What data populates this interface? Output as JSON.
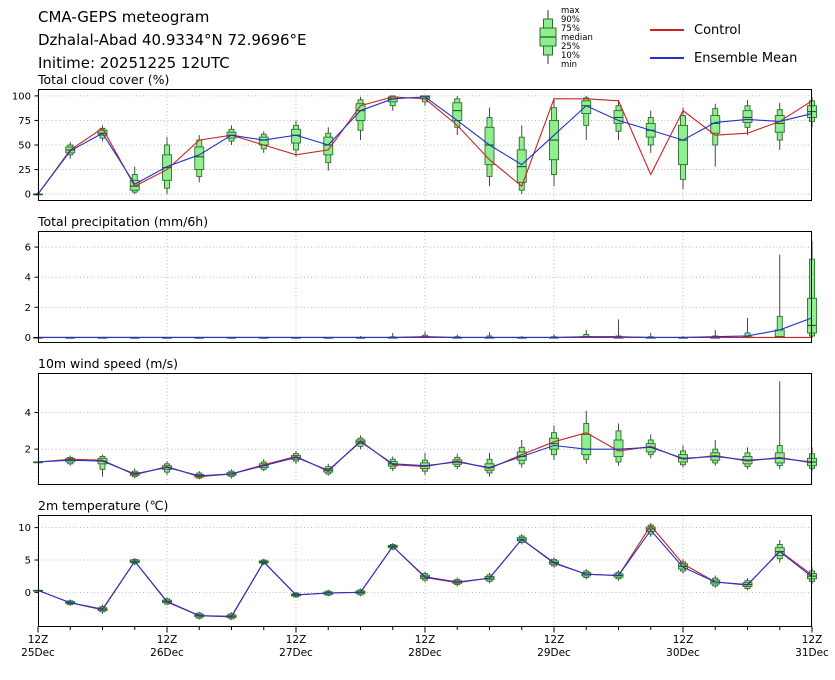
{
  "header": {
    "title": "CMA-GEPS meteogram",
    "station": "Dzhalal-Abad 40.9334°N 72.9696°E",
    "inittime": "Initime: 20251225 12UTC"
  },
  "legend": {
    "box_labels": [
      "max",
      "90%",
      "75%",
      "median",
      "25%",
      "10%",
      "min"
    ],
    "series": [
      {
        "label": "Control",
        "color": "#cc2222"
      },
      {
        "label": "Ensemble Mean",
        "color": "#2233cc"
      }
    ]
  },
  "colors": {
    "box_fill": "#90ee90",
    "box_edge": "#2d6e2d",
    "median": "#1a5c1a",
    "whisker": "#333333",
    "control": "#cc2222",
    "mean": "#2233cc",
    "grid": "#aaaaaa"
  },
  "x_axis": {
    "step_hours": 6,
    "major_tick_indices": [
      0,
      4,
      8,
      12,
      16,
      20,
      24
    ],
    "major_labels": [
      [
        "12Z",
        "25Dec"
      ],
      [
        "12Z",
        "26Dec"
      ],
      [
        "12Z",
        "27Dec"
      ],
      [
        "12Z",
        "28Dec"
      ],
      [
        "12Z",
        "29Dec"
      ],
      [
        "12Z",
        "30Dec"
      ],
      [
        "12Z",
        "31Dec"
      ]
    ]
  },
  "chart_data": [
    {
      "id": "cloud",
      "type": "box+line",
      "title": "Total cloud cover (%)",
      "ylim": [
        -6,
        106
      ],
      "yticks": [
        0,
        25,
        50,
        75,
        100
      ],
      "boxes": [
        [
          0,
          0,
          0,
          0,
          0,
          0,
          2
        ],
        [
          36,
          40,
          42,
          45,
          48,
          50,
          53
        ],
        [
          54,
          57,
          60,
          62,
          65,
          67,
          70
        ],
        [
          0,
          2,
          4,
          8,
          14,
          20,
          28
        ],
        [
          0,
          6,
          14,
          27,
          40,
          50,
          58
        ],
        [
          12,
          18,
          25,
          38,
          48,
          55,
          60
        ],
        [
          50,
          54,
          57,
          60,
          63,
          66,
          70
        ],
        [
          42,
          46,
          50,
          55,
          58,
          61,
          64
        ],
        [
          38,
          45,
          52,
          60,
          66,
          70,
          75
        ],
        [
          24,
          32,
          40,
          50,
          58,
          62,
          68
        ],
        [
          55,
          65,
          75,
          85,
          92,
          96,
          99
        ],
        [
          85,
          90,
          94,
          97,
          99,
          100,
          100
        ],
        [
          90,
          94,
          97,
          99,
          100,
          100,
          100
        ],
        [
          60,
          68,
          75,
          85,
          93,
          97,
          100
        ],
        [
          8,
          18,
          30,
          50,
          68,
          78,
          88
        ],
        [
          0,
          4,
          12,
          28,
          45,
          58,
          70
        ],
        [
          8,
          20,
          35,
          55,
          75,
          88,
          97
        ],
        [
          55,
          70,
          82,
          90,
          95,
          98,
          100
        ],
        [
          55,
          64,
          72,
          78,
          85,
          90,
          96
        ],
        [
          42,
          50,
          58,
          65,
          72,
          78,
          85
        ],
        [
          5,
          15,
          30,
          55,
          70,
          80,
          88
        ],
        [
          28,
          50,
          62,
          72,
          80,
          87,
          92
        ],
        [
          60,
          68,
          73,
          78,
          85,
          90,
          96
        ],
        [
          45,
          55,
          63,
          72,
          80,
          86,
          93
        ],
        [
          68,
          74,
          78,
          84,
          90,
          95,
          99
        ]
      ],
      "control": [
        0,
        45,
        67,
        8,
        25,
        55,
        60,
        50,
        40,
        45,
        90,
        99,
        97,
        70,
        35,
        8,
        97,
        97,
        95,
        20,
        85,
        60,
        62,
        74,
        95
      ],
      "mean": [
        0,
        44,
        62,
        10,
        28,
        40,
        60,
        55,
        60,
        50,
        85,
        97,
        99,
        75,
        50,
        30,
        60,
        90,
        75,
        65,
        55,
        73,
        76,
        74,
        82
      ]
    },
    {
      "id": "precip",
      "type": "box+line",
      "title": "Total precipitation (mm/6h)",
      "ylim": [
        -0.3,
        7.0
      ],
      "yticks": [
        0,
        2,
        4,
        6
      ],
      "boxes": [
        [
          0,
          0,
          0,
          0,
          0,
          0,
          0
        ],
        [
          0,
          0,
          0,
          0,
          0,
          0,
          0
        ],
        [
          0,
          0,
          0,
          0,
          0,
          0,
          0
        ],
        [
          0,
          0,
          0,
          0,
          0,
          0,
          0
        ],
        [
          0,
          0,
          0,
          0,
          0,
          0,
          0
        ],
        [
          0,
          0,
          0,
          0,
          0,
          0,
          0
        ],
        [
          0,
          0,
          0,
          0,
          0,
          0,
          0
        ],
        [
          0,
          0,
          0,
          0,
          0,
          0,
          0
        ],
        [
          0,
          0,
          0,
          0,
          0,
          0,
          0
        ],
        [
          0,
          0,
          0,
          0,
          0,
          0,
          0
        ],
        [
          0,
          0,
          0,
          0,
          0,
          0,
          0.1
        ],
        [
          0,
          0,
          0,
          0,
          0,
          0.05,
          0.3
        ],
        [
          0,
          0,
          0,
          0,
          0.05,
          0.15,
          0.4
        ],
        [
          0,
          0,
          0,
          0,
          0,
          0.05,
          0.2
        ],
        [
          0,
          0,
          0,
          0,
          0,
          0.1,
          0.35
        ],
        [
          0,
          0,
          0,
          0,
          0,
          0,
          0.1
        ],
        [
          0,
          0,
          0,
          0,
          0,
          0.05,
          0.2
        ],
        [
          0,
          0,
          0,
          0,
          0.05,
          0.2,
          0.5
        ],
        [
          0,
          0,
          0,
          0,
          0,
          0.1,
          1.2
        ],
        [
          0,
          0,
          0,
          0,
          0,
          0.05,
          0.3
        ],
        [
          0,
          0,
          0,
          0,
          0,
          0,
          0.1
        ],
        [
          0,
          0,
          0,
          0,
          0,
          0.1,
          0.5
        ],
        [
          0,
          0,
          0,
          0,
          0.05,
          0.3,
          1.3
        ],
        [
          0,
          0,
          0,
          0.05,
          0.5,
          1.4,
          5.5
        ],
        [
          0,
          0.1,
          0.3,
          0.8,
          2.6,
          5.2,
          6.4
        ]
      ],
      "control": [
        0,
        0,
        0,
        0,
        0,
        0,
        0,
        0,
        0,
        0,
        0,
        0,
        0,
        0,
        0,
        0,
        0,
        0,
        0,
        0,
        0,
        0,
        0,
        0,
        0
      ],
      "mean": [
        0,
        0,
        0,
        0,
        0,
        0,
        0,
        0,
        0,
        0,
        0,
        0,
        0.05,
        0,
        0,
        0,
        0,
        0.05,
        0.05,
        0,
        0,
        0.05,
        0.1,
        0.5,
        1.3
      ]
    },
    {
      "id": "wind",
      "type": "box+line",
      "title": "10m wind speed (m/s)",
      "ylim": [
        0.1,
        6.1
      ],
      "yticks": [
        2,
        4
      ],
      "boxes": [
        [
          1.3,
          1.3,
          1.3,
          1.3,
          1.3,
          1.3,
          1.3
        ],
        [
          1.1,
          1.2,
          1.3,
          1.4,
          1.5,
          1.55,
          1.65
        ],
        [
          0.5,
          0.9,
          1.2,
          1.35,
          1.5,
          1.6,
          1.7
        ],
        [
          0.4,
          0.5,
          0.58,
          0.65,
          0.72,
          0.8,
          0.95
        ],
        [
          0.6,
          0.75,
          0.9,
          1.0,
          1.1,
          1.2,
          1.35
        ],
        [
          0.35,
          0.42,
          0.48,
          0.55,
          0.62,
          0.7,
          0.8
        ],
        [
          0.4,
          0.5,
          0.58,
          0.65,
          0.72,
          0.8,
          0.9
        ],
        [
          0.8,
          0.9,
          1.0,
          1.1,
          1.2,
          1.3,
          1.45
        ],
        [
          1.2,
          1.35,
          1.45,
          1.55,
          1.65,
          1.75,
          1.9
        ],
        [
          0.55,
          0.65,
          0.75,
          0.85,
          0.95,
          1.05,
          1.2
        ],
        [
          2.0,
          2.15,
          2.3,
          2.4,
          2.5,
          2.6,
          2.75
        ],
        [
          0.8,
          0.95,
          1.08,
          1.2,
          1.32,
          1.45,
          1.6
        ],
        [
          0.6,
          0.8,
          0.95,
          1.1,
          1.25,
          1.4,
          1.8
        ],
        [
          0.9,
          1.05,
          1.18,
          1.3,
          1.42,
          1.55,
          1.75
        ],
        [
          0.5,
          0.7,
          0.85,
          1.0,
          1.2,
          1.45,
          1.8
        ],
        [
          1.0,
          1.2,
          1.4,
          1.6,
          1.85,
          2.1,
          2.5
        ],
        [
          1.4,
          1.7,
          2.0,
          2.3,
          2.6,
          2.9,
          3.3
        ],
        [
          1.2,
          1.45,
          1.7,
          2.0,
          2.8,
          3.4,
          4.1
        ],
        [
          1.1,
          1.3,
          1.6,
          2.0,
          2.5,
          3.0,
          3.4
        ],
        [
          1.5,
          1.7,
          1.85,
          2.1,
          2.3,
          2.5,
          2.8
        ],
        [
          1.0,
          1.15,
          1.3,
          1.5,
          1.7,
          1.9,
          2.2
        ],
        [
          1.1,
          1.25,
          1.4,
          1.6,
          1.8,
          2.0,
          2.5
        ],
        [
          0.9,
          1.05,
          1.2,
          1.4,
          1.6,
          1.8,
          2.1
        ],
        [
          0.9,
          1.1,
          1.25,
          1.5,
          1.8,
          2.2,
          5.7
        ],
        [
          0.8,
          0.95,
          1.1,
          1.3,
          1.5,
          1.75,
          2.1
        ]
      ],
      "control": [
        1.3,
        1.45,
        1.4,
        0.6,
        1.05,
        0.5,
        0.65,
        1.15,
        1.6,
        0.8,
        2.45,
        1.15,
        1.05,
        1.35,
        0.95,
        1.7,
        2.4,
        2.9,
        1.9,
        2.15,
        1.45,
        1.65,
        1.35,
        1.55,
        1.25
      ],
      "mean": [
        1.3,
        1.4,
        1.35,
        0.65,
        1.0,
        0.55,
        0.65,
        1.1,
        1.55,
        0.85,
        2.4,
        1.2,
        1.1,
        1.3,
        1.0,
        1.6,
        2.2,
        2.0,
        2.0,
        2.1,
        1.5,
        1.6,
        1.4,
        1.5,
        1.3
      ]
    },
    {
      "id": "temp",
      "type": "box+line",
      "title": "2m temperature (℃)",
      "ylim": [
        -5.2,
        11.8
      ],
      "yticks": [
        0,
        5,
        10
      ],
      "boxes": [
        [
          0.3,
          0.3,
          0.3,
          0.3,
          0.3,
          0.3,
          0.3
        ],
        [
          -2.1,
          -1.9,
          -1.75,
          -1.6,
          -1.45,
          -1.3,
          -1.1
        ],
        [
          -3.3,
          -3.0,
          -2.8,
          -2.6,
          -2.4,
          -2.2,
          -1.9
        ],
        [
          4.2,
          4.4,
          4.6,
          4.8,
          5.0,
          5.1,
          5.3
        ],
        [
          -2.0,
          -1.8,
          -1.6,
          -1.4,
          -1.2,
          -1.0,
          -0.8
        ],
        [
          -4.2,
          -4.0,
          -3.8,
          -3.6,
          -3.4,
          -3.2,
          -3.0
        ],
        [
          -4.3,
          -4.1,
          -3.9,
          -3.7,
          -3.5,
          -3.3,
          -3.1
        ],
        [
          4.2,
          4.4,
          4.55,
          4.7,
          4.85,
          5.0,
          5.2
        ],
        [
          -0.9,
          -0.7,
          -0.55,
          -0.4,
          -0.25,
          -0.1,
          0.1
        ],
        [
          -0.6,
          -0.45,
          -0.3,
          -0.1,
          0.05,
          0.2,
          0.4
        ],
        [
          -0.6,
          -0.4,
          -0.2,
          0.0,
          0.2,
          0.4,
          0.6
        ],
        [
          6.5,
          6.7,
          6.9,
          7.1,
          7.25,
          7.4,
          7.6
        ],
        [
          1.6,
          1.9,
          2.15,
          2.4,
          2.65,
          2.9,
          3.2
        ],
        [
          0.9,
          1.2,
          1.4,
          1.6,
          1.8,
          2.0,
          2.3
        ],
        [
          1.4,
          1.7,
          1.95,
          2.2,
          2.45,
          2.7,
          3.0
        ],
        [
          7.4,
          7.7,
          7.95,
          8.2,
          8.45,
          8.7,
          9.0
        ],
        [
          3.8,
          4.1,
          4.35,
          4.6,
          4.85,
          5.1,
          5.4
        ],
        [
          2.0,
          2.3,
          2.55,
          2.8,
          3.05,
          3.3,
          3.6
        ],
        [
          1.8,
          2.1,
          2.35,
          2.6,
          2.85,
          3.1,
          3.4
        ],
        [
          8.6,
          9.0,
          9.4,
          9.8,
          10.1,
          10.4,
          10.7
        ],
        [
          2.9,
          3.3,
          3.6,
          4.0,
          4.4,
          4.7,
          5.1
        ],
        [
          0.7,
          1.0,
          1.3,
          1.6,
          1.9,
          2.2,
          2.6
        ],
        [
          0.3,
          0.6,
          0.9,
          1.2,
          1.5,
          1.8,
          2.2
        ],
        [
          4.6,
          5.2,
          5.7,
          6.3,
          6.9,
          7.4,
          8.1
        ],
        [
          1.3,
          1.7,
          2.1,
          2.5,
          2.9,
          3.3,
          3.9
        ]
      ],
      "control": [
        0.3,
        -1.6,
        -2.7,
        4.8,
        -1.5,
        -3.6,
        -3.8,
        4.7,
        -0.4,
        -0.1,
        0.0,
        7.1,
        2.3,
        1.5,
        2.2,
        8.2,
        4.5,
        2.8,
        2.6,
        10.3,
        4.4,
        1.6,
        1.1,
        6.4,
        2.7
      ],
      "mean": [
        0.3,
        -1.6,
        -2.6,
        4.8,
        -1.4,
        -3.6,
        -3.7,
        4.7,
        -0.4,
        -0.1,
        0.0,
        7.1,
        2.4,
        1.6,
        2.2,
        8.2,
        4.6,
        2.8,
        2.6,
        9.6,
        3.9,
        1.6,
        1.2,
        6.3,
        2.4
      ]
    }
  ]
}
